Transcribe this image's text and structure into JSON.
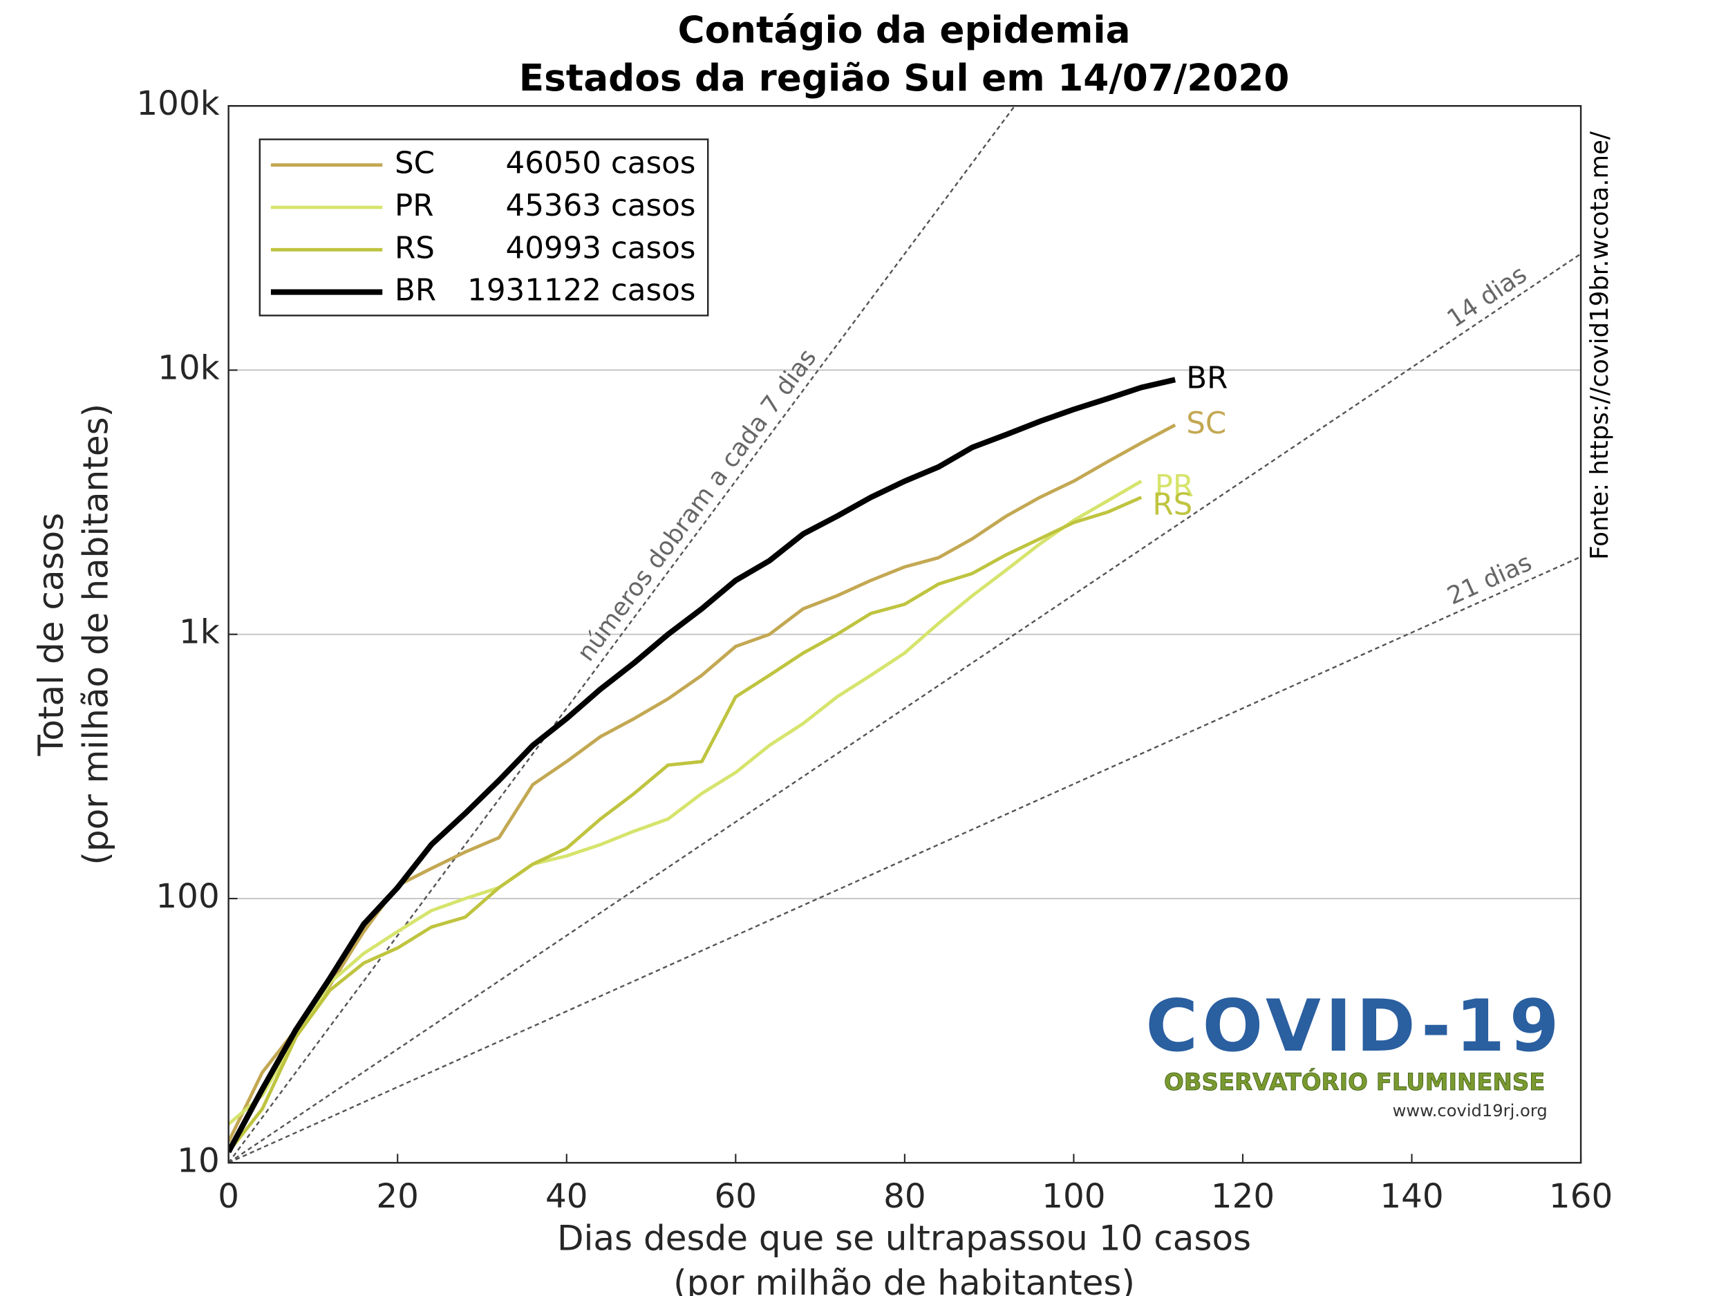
{
  "chart_data": {
    "type": "line",
    "title": "Contágio da epidemia",
    "subtitle": "Estados da região Sul em 14/07/2020",
    "x_label": "Dias desde que se ultrapassou 10 casos",
    "x_label_2": "(por milhão de habitantes)",
    "y_label": "Total de casos",
    "y_label_2": "(por milhão de habitantes)",
    "source": "Fonte: https://covid19br.wcota.me/",
    "logo": {
      "title": "COVID-19",
      "subtitle": "OBSERVATÓRIO FLUMINENSE",
      "url": "www.covid19rj.org"
    },
    "log_y": true,
    "grid": "y",
    "legend": "upper left",
    "xlim": [
      0,
      160
    ],
    "xticks": [
      0,
      20,
      40,
      60,
      80,
      100,
      120,
      140,
      160
    ],
    "ylim": [
      10,
      100000
    ],
    "yticks": [
      10,
      100,
      {
        "value": 1000,
        "label": "1k"
      },
      {
        "value": 10000,
        "label": "10k"
      },
      {
        "value": 100000,
        "label": "100k"
      }
    ],
    "x": [
      0,
      4,
      8,
      12,
      16,
      20,
      24,
      28,
      32,
      36,
      40,
      44,
      48,
      52,
      56,
      60,
      64,
      68,
      72,
      76,
      80,
      84,
      88,
      92,
      96,
      100,
      104,
      108,
      112
    ],
    "series": [
      {
        "name": "SC",
        "legend_label": "46050 casos",
        "color": "#c3a853",
        "width": 3,
        "values": [
          12,
          22,
          32,
          47,
          75,
          112,
          130,
          150,
          170,
          270,
          330,
          410,
          480,
          570,
          700,
          900,
          1000,
          1250,
          1400,
          1600,
          1800,
          1950,
          2300,
          2800,
          3300,
          3800,
          4500,
          5300,
          6200
        ]
      },
      {
        "name": "PR",
        "legend_label": "45363 casos",
        "color": "#d6e46c",
        "width": 3,
        "values": [
          14,
          18,
          30,
          48,
          62,
          75,
          90,
          100,
          110,
          135,
          145,
          160,
          180,
          200,
          250,
          300,
          380,
          460,
          580,
          700,
          850,
          1100,
          1400,
          1750,
          2200,
          2700,
          3200,
          3800,
          null
        ]
      },
      {
        "name": "RS",
        "legend_label": "40993 casos",
        "color": "#bfc43f",
        "width": 3,
        "values": [
          11,
          16,
          30,
          45,
          57,
          65,
          78,
          85,
          110,
          135,
          155,
          200,
          250,
          320,
          330,
          580,
          700,
          850,
          1000,
          1200,
          1300,
          1550,
          1700,
          2000,
          2300,
          2650,
          2900,
          3300,
          null
        ]
      },
      {
        "name": "BR",
        "legend_label": "1931122 casos",
        "color": "#000000",
        "width": 5,
        "values": [
          11,
          19,
          32,
          50,
          80,
          110,
          160,
          210,
          280,
          380,
          480,
          620,
          780,
          1000,
          1250,
          1600,
          1900,
          2400,
          2800,
          3300,
          3800,
          4300,
          5100,
          5700,
          6400,
          7100,
          7800,
          8600,
          9200
        ]
      }
    ],
    "reference_lines": [
      {
        "label": "números dobram a cada 7 dias",
        "days": 7
      },
      {
        "label": "14 dias",
        "days": 14
      },
      {
        "label": "21 dias",
        "days": 21
      }
    ]
  }
}
